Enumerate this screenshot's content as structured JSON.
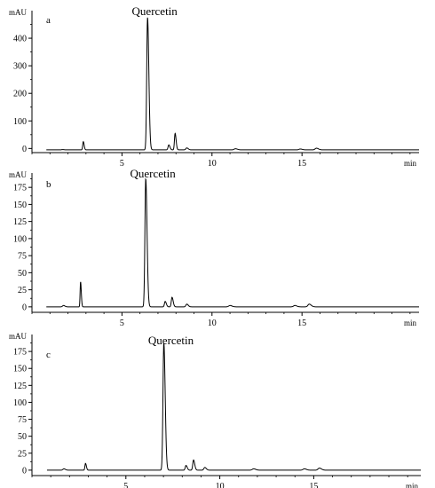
{
  "chart_data": [
    {
      "type": "line",
      "panel_label": "a",
      "annotation": "Quercetin",
      "ylabel": "mAU",
      "xlabel": "min",
      "xlim": [
        0,
        21.5
      ],
      "ylim": [
        -15,
        500
      ],
      "x_ticks": [
        "5",
        "10",
        "15"
      ],
      "y_ticks": [
        "0",
        "100",
        "200",
        "300",
        "400"
      ],
      "x_tick_values": [
        5,
        10,
        15
      ],
      "y_tick_values": [
        0,
        100,
        200,
        300,
        400
      ],
      "baseline": -5,
      "peaks": [
        {
          "x": 1.7,
          "y": 1,
          "w": 0.05
        },
        {
          "x": 2.85,
          "y": 30,
          "w": 0.03
        },
        {
          "x": 6.42,
          "y": 480,
          "w": 0.045
        },
        {
          "x": 7.6,
          "y": 18,
          "w": 0.04
        },
        {
          "x": 7.95,
          "y": 60,
          "w": 0.035
        },
        {
          "x": 8.6,
          "y": 7,
          "w": 0.05
        },
        {
          "x": 11.3,
          "y": 4,
          "w": 0.07
        },
        {
          "x": 14.9,
          "y": 3,
          "w": 0.07
        },
        {
          "x": 15.8,
          "y": 6,
          "w": 0.07
        }
      ]
    },
    {
      "type": "line",
      "panel_label": "b",
      "annotation": "Quercetin",
      "ylabel": "mAU",
      "xlabel": "min",
      "xlim": [
        0,
        21.5
      ],
      "ylim": [
        -8,
        196
      ],
      "x_ticks": [
        "5",
        "10",
        "15"
      ],
      "y_ticks": [
        "0",
        "25",
        "50",
        "75",
        "100",
        "125",
        "150",
        "175"
      ],
      "x_tick_values": [
        5,
        10,
        15
      ],
      "y_tick_values": [
        0,
        25,
        50,
        75,
        100,
        125,
        150,
        175
      ],
      "baseline": 0,
      "peaks": [
        {
          "x": 1.75,
          "y": 2,
          "w": 0.05
        },
        {
          "x": 2.7,
          "y": 37,
          "w": 0.025
        },
        {
          "x": 6.32,
          "y": 188,
          "w": 0.045
        },
        {
          "x": 7.4,
          "y": 8,
          "w": 0.04
        },
        {
          "x": 7.78,
          "y": 14,
          "w": 0.04
        },
        {
          "x": 8.6,
          "y": 4,
          "w": 0.05
        },
        {
          "x": 11,
          "y": 2,
          "w": 0.07
        },
        {
          "x": 14.6,
          "y": 2,
          "w": 0.07
        },
        {
          "x": 15.4,
          "y": 4,
          "w": 0.07
        }
      ]
    },
    {
      "type": "line",
      "panel_label": "c",
      "annotation": "Quercetin",
      "ylabel": "mAU",
      "xlabel": "min",
      "xlim": [
        0,
        20.7
      ],
      "ylim": [
        -8,
        200
      ],
      "x_ticks": [
        "5",
        "10",
        "15"
      ],
      "y_ticks": [
        "0",
        "25",
        "50",
        "75",
        "100",
        "125",
        "150",
        "175"
      ],
      "x_tick_values": [
        5,
        10,
        15
      ],
      "y_tick_values": [
        0,
        25,
        50,
        75,
        100,
        125,
        150,
        175
      ],
      "baseline": 0,
      "peaks": [
        {
          "x": 1.7,
          "y": 2,
          "w": 0.05
        },
        {
          "x": 2.85,
          "y": 10,
          "w": 0.03
        },
        {
          "x": 7.02,
          "y": 188,
          "w": 0.045
        },
        {
          "x": 8.2,
          "y": 7,
          "w": 0.04
        },
        {
          "x": 8.6,
          "y": 15,
          "w": 0.04
        },
        {
          "x": 9.2,
          "y": 4,
          "w": 0.05
        },
        {
          "x": 11.8,
          "y": 2,
          "w": 0.07
        },
        {
          "x": 14.5,
          "y": 2,
          "w": 0.07
        },
        {
          "x": 15.3,
          "y": 3,
          "w": 0.07
        }
      ]
    }
  ]
}
